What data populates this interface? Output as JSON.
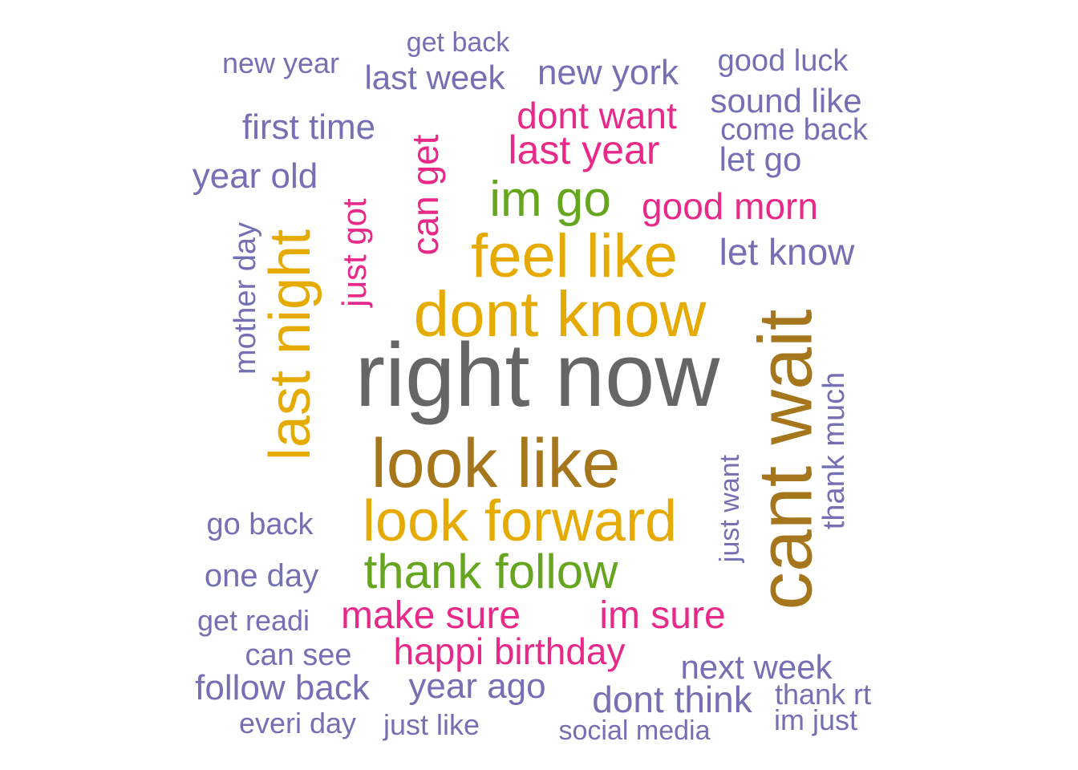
{
  "palette": {
    "gray": "#666666",
    "gold": "#E6AB02",
    "brown": "#A6761D",
    "green": "#66A61E",
    "magenta": "#E7298A",
    "lavender": "#7570B3"
  },
  "words": [
    {
      "key": "right-now",
      "text": "right now",
      "color": "gray"
    },
    {
      "key": "dont-know",
      "text": "dont know",
      "color": "gold"
    },
    {
      "key": "feel-like",
      "text": "feel like",
      "color": "gold"
    },
    {
      "key": "look-like",
      "text": "look like",
      "color": "brown"
    },
    {
      "key": "look-forward",
      "text": "look forward",
      "color": "gold"
    },
    {
      "key": "cant-wait",
      "text": "cant wait",
      "color": "brown"
    },
    {
      "key": "last-night",
      "text": "last night",
      "color": "gold"
    },
    {
      "key": "thank-follow",
      "text": "thank follow",
      "color": "green"
    },
    {
      "key": "im-go",
      "text": "im go",
      "color": "green"
    },
    {
      "key": "last-year",
      "text": "last year",
      "color": "magenta"
    },
    {
      "key": "dont-want",
      "text": "dont want",
      "color": "magenta"
    },
    {
      "key": "good-morn",
      "text": "good morn",
      "color": "magenta"
    },
    {
      "key": "can-get",
      "text": "can get",
      "color": "magenta"
    },
    {
      "key": "just-got",
      "text": "just got",
      "color": "magenta"
    },
    {
      "key": "make-sure",
      "text": "make sure",
      "color": "magenta"
    },
    {
      "key": "im-sure",
      "text": "im sure",
      "color": "magenta"
    },
    {
      "key": "happi-birthday",
      "text": "happi birthday",
      "color": "magenta"
    },
    {
      "key": "get-back",
      "text": "get back",
      "color": "lavender"
    },
    {
      "key": "new-year",
      "text": "new year",
      "color": "lavender"
    },
    {
      "key": "last-week",
      "text": "last week",
      "color": "lavender"
    },
    {
      "key": "new-york",
      "text": "new york",
      "color": "lavender"
    },
    {
      "key": "good-luck",
      "text": "good luck",
      "color": "lavender"
    },
    {
      "key": "sound-like",
      "text": "sound like",
      "color": "lavender"
    },
    {
      "key": "come-back",
      "text": "come back",
      "color": "lavender"
    },
    {
      "key": "first-time",
      "text": "first time",
      "color": "lavender"
    },
    {
      "key": "let-go",
      "text": "let go",
      "color": "lavender"
    },
    {
      "key": "year-old",
      "text": "year old",
      "color": "lavender"
    },
    {
      "key": "let-know",
      "text": "let know",
      "color": "lavender"
    },
    {
      "key": "mother-day",
      "text": "mother day",
      "color": "lavender"
    },
    {
      "key": "thank-much",
      "text": "thank much",
      "color": "lavender"
    },
    {
      "key": "just-want",
      "text": "just want",
      "color": "lavender"
    },
    {
      "key": "go-back",
      "text": "go back",
      "color": "lavender"
    },
    {
      "key": "one-day",
      "text": "one day",
      "color": "lavender"
    },
    {
      "key": "get-readi",
      "text": "get readi",
      "color": "lavender"
    },
    {
      "key": "can-see",
      "text": "can see",
      "color": "lavender"
    },
    {
      "key": "next-week",
      "text": "next week",
      "color": "lavender"
    },
    {
      "key": "follow-back",
      "text": "follow back",
      "color": "lavender"
    },
    {
      "key": "year-ago",
      "text": "year ago",
      "color": "lavender"
    },
    {
      "key": "dont-think",
      "text": "dont think",
      "color": "lavender"
    },
    {
      "key": "thank-rt",
      "text": "thank rt",
      "color": "lavender"
    },
    {
      "key": "everi-day",
      "text": "everi day",
      "color": "lavender"
    },
    {
      "key": "just-like",
      "text": "just like",
      "color": "lavender"
    },
    {
      "key": "social-media",
      "text": "social media",
      "color": "lavender"
    },
    {
      "key": "im-just",
      "text": "im just",
      "color": "lavender"
    }
  ]
}
